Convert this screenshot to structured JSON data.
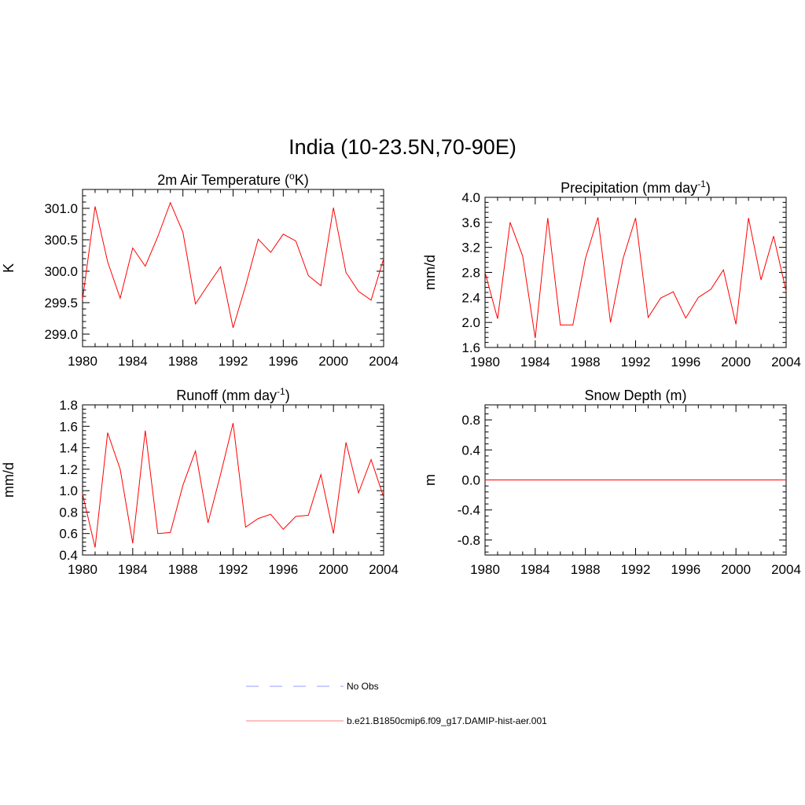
{
  "figure": {
    "title": "India (10-23.5N,70-90E)"
  },
  "legend": [
    {
      "label": "No Obs",
      "color": "#aab0ff",
      "style": "dashed"
    },
    {
      "label": "b.e21.B1850cmip6.f09_g17.DAMIP-hist-aer.001",
      "color": "#ff9999",
      "style": "solid"
    }
  ],
  "chart_data": [
    {
      "type": "line",
      "title_main": "2m Air Temperature (",
      "title_sup_left": "o",
      "title_rest": "K)",
      "title_sup_right": "",
      "title_tail": "",
      "ylabel": "K",
      "x": [
        1980,
        1981,
        1982,
        1983,
        1984,
        1985,
        1986,
        1987,
        1988,
        1989,
        1990,
        1991,
        1992,
        1993,
        1994,
        1995,
        1996,
        1997,
        1998,
        1999,
        2000,
        2001,
        2002,
        2003,
        2004
      ],
      "series": [
        {
          "color": "#ff0000",
          "values": [
            299.55,
            301.03,
            300.15,
            299.57,
            300.37,
            300.08,
            300.55,
            301.09,
            300.62,
            299.48,
            299.78,
            300.07,
            299.1,
            299.77,
            300.51,
            300.3,
            300.59,
            300.48,
            299.93,
            299.77,
            301.01,
            299.98,
            299.68,
            299.54,
            300.2
          ]
        }
      ],
      "xlim": [
        1980,
        2004
      ],
      "ylim": [
        298.8,
        301.3
      ],
      "xticks": [
        "1980",
        "1984",
        "1988",
        "1992",
        "1996",
        "2000",
        "2004"
      ],
      "yticks": [
        "299.0",
        "299.5",
        "300.0",
        "300.5",
        "301.0"
      ]
    },
    {
      "type": "line",
      "title_main": "Precipitation (mm day",
      "title_sup_left": "",
      "title_rest": "",
      "title_sup_right": "-1",
      "title_tail": ")",
      "ylabel": "mm/d",
      "x": [
        1980,
        1981,
        1982,
        1983,
        1984,
        1985,
        1986,
        1987,
        1988,
        1989,
        1990,
        1991,
        1992,
        1993,
        1994,
        1995,
        1996,
        1997,
        1998,
        1999,
        2000,
        2001,
        2002,
        2003,
        2004
      ],
      "series": [
        {
          "color": "#ff0000",
          "values": [
            2.8,
            2.06,
            3.6,
            3.06,
            1.75,
            3.67,
            1.96,
            1.96,
            3.02,
            3.68,
            2.0,
            3.02,
            3.67,
            2.08,
            2.39,
            2.49,
            2.07,
            2.4,
            2.53,
            2.84,
            1.97,
            3.67,
            2.68,
            3.38,
            2.5
          ]
        }
      ],
      "xlim": [
        1980,
        2004
      ],
      "ylim": [
        1.6,
        4.0
      ],
      "xticks": [
        "1980",
        "1984",
        "1988",
        "1992",
        "1996",
        "2000",
        "2004"
      ],
      "yticks": [
        "1.6",
        "2.0",
        "2.4",
        "2.8",
        "3.2",
        "3.6",
        "4.0"
      ]
    },
    {
      "type": "line",
      "title_main": "Runoff (mm day",
      "title_sup_left": "",
      "title_rest": "",
      "title_sup_right": "-1",
      "title_tail": ")",
      "ylabel": "mm/d",
      "x": [
        1980,
        1981,
        1982,
        1983,
        1984,
        1985,
        1986,
        1987,
        1988,
        1989,
        1990,
        1991,
        1992,
        1993,
        1994,
        1995,
        1996,
        1997,
        1998,
        1999,
        2000,
        2001,
        2002,
        2003,
        2004
      ],
      "series": [
        {
          "color": "#ff0000",
          "values": [
            0.97,
            0.47,
            1.54,
            1.2,
            0.51,
            1.56,
            0.6,
            0.61,
            1.05,
            1.37,
            0.7,
            1.15,
            1.63,
            0.66,
            0.74,
            0.78,
            0.64,
            0.76,
            0.77,
            1.15,
            0.6,
            1.45,
            0.98,
            1.29,
            0.94
          ]
        }
      ],
      "xlim": [
        1980,
        2004
      ],
      "ylim": [
        0.4,
        1.8
      ],
      "xticks": [
        "1980",
        "1984",
        "1988",
        "1992",
        "1996",
        "2000",
        "2004"
      ],
      "yticks": [
        "0.4",
        "0.6",
        "0.8",
        "1.0",
        "1.2",
        "1.4",
        "1.6",
        "1.8"
      ]
    },
    {
      "type": "line",
      "title_main": "Snow Depth (m)",
      "title_sup_left": "",
      "title_rest": "",
      "title_sup_right": "",
      "title_tail": "",
      "ylabel": "m",
      "x": [
        1980,
        1981,
        1982,
        1983,
        1984,
        1985,
        1986,
        1987,
        1988,
        1989,
        1990,
        1991,
        1992,
        1993,
        1994,
        1995,
        1996,
        1997,
        1998,
        1999,
        2000,
        2001,
        2002,
        2003,
        2004
      ],
      "series": [
        {
          "color": "#ff0000",
          "values": [
            0,
            0,
            0,
            0,
            0,
            0,
            0,
            0,
            0,
            0,
            0,
            0,
            0,
            0,
            0,
            0,
            0,
            0,
            0,
            0,
            0,
            0,
            0,
            0,
            0
          ]
        }
      ],
      "xlim": [
        1980,
        2004
      ],
      "ylim": [
        -1.0,
        1.0
      ],
      "xticks": [
        "1980",
        "1984",
        "1988",
        "1992",
        "1996",
        "2000",
        "2004"
      ],
      "yticks": [
        "-0.8",
        "-0.4",
        "0.0",
        "0.4",
        "0.8"
      ]
    }
  ]
}
